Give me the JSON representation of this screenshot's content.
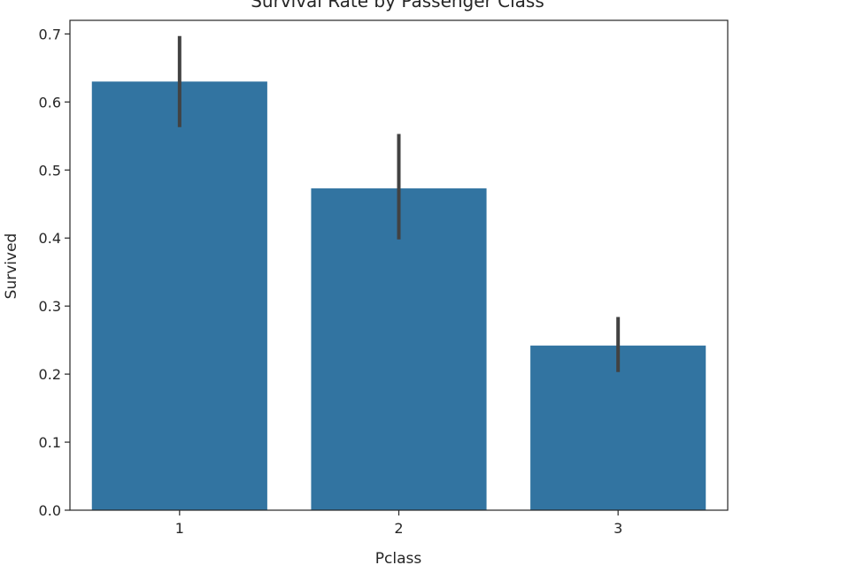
{
  "chart_data": {
    "type": "bar",
    "title": "Survival Rate by Passenger Class",
    "xlabel": "Pclass",
    "ylabel": "Survived",
    "categories": [
      "1",
      "2",
      "3"
    ],
    "values": [
      0.63,
      0.473,
      0.242
    ],
    "error_bars": [
      {
        "low": 0.563,
        "high": 0.697
      },
      {
        "low": 0.398,
        "high": 0.553
      },
      {
        "low": 0.203,
        "high": 0.284
      }
    ],
    "ylim": [
      0,
      0.72
    ],
    "yticks": [
      "0.0",
      "0.1",
      "0.2",
      "0.3",
      "0.4",
      "0.5",
      "0.6",
      "0.7"
    ],
    "grid": false,
    "bar_color": "#3274a1",
    "error_color": "#424242"
  }
}
